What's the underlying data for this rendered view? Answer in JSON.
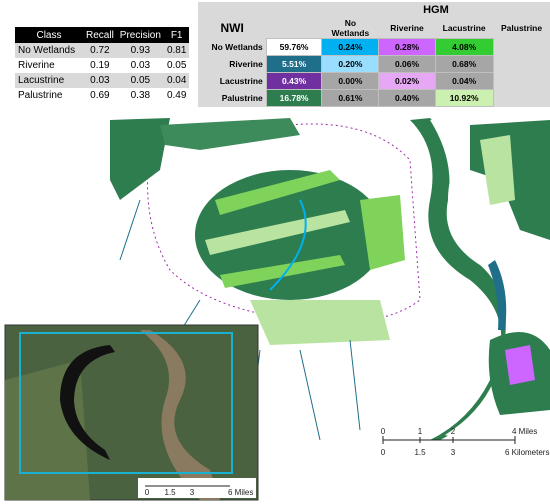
{
  "metrics_table": {
    "header": [
      "Class",
      "Recall",
      "Precision",
      "F1"
    ],
    "rows": [
      [
        "No Wetlands",
        "0.72",
        "0.93",
        "0.81"
      ],
      [
        "Riverine",
        "0.19",
        "0.03",
        "0.05"
      ],
      [
        "Lacustrine",
        "0.03",
        "0.05",
        "0.04"
      ],
      [
        "Palustrine",
        "0.69",
        "0.38",
        "0.49"
      ]
    ]
  },
  "confusion_table": {
    "column_title": "HGM",
    "row_title": "NWI",
    "columns": [
      "No Wetlands",
      "Riverine",
      "Lacustrine",
      "Palustrine"
    ],
    "rows": [
      {
        "label": "No Wetlands",
        "cells": [
          "59.76%",
          "0.24%",
          "0.28%",
          "4.08%"
        ]
      },
      {
        "label": "Riverine",
        "cells": [
          "5.51%",
          "0.20%",
          "0.06%",
          "0.68%"
        ]
      },
      {
        "label": "Lacustrine",
        "cells": [
          "0.43%",
          "0.00%",
          "0.02%",
          "0.04%"
        ]
      },
      {
        "label": "Palustrine",
        "cells": [
          "16.78%",
          "0.61%",
          "0.40%",
          "10.92%"
        ]
      }
    ]
  },
  "map_scale": {
    "miles": [
      "0",
      "1",
      "2",
      "4 Miles"
    ],
    "kilometers": [
      "0",
      "1.5",
      "3",
      "6 Kilometers"
    ]
  },
  "inset_scale": {
    "miles": [
      "0",
      "1.5",
      "3",
      "6 Miles"
    ]
  }
}
